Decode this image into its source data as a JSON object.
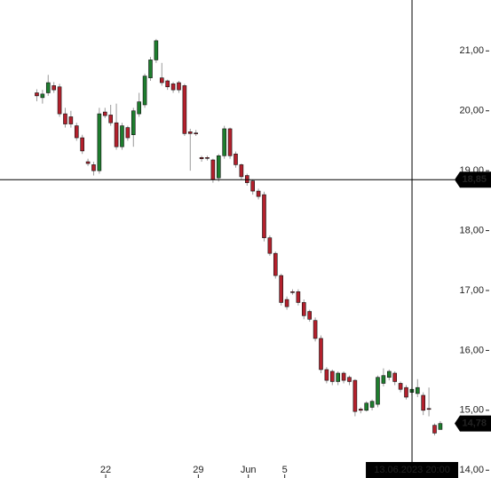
{
  "chart_data": {
    "type": "candlestick",
    "open": [
      20.3,
      20.22,
      20.3,
      20.42,
      20.4,
      19.95,
      19.9,
      19.75,
      19.55,
      19.15,
      19.1,
      19.0,
      19.98,
      19.93,
      19.8,
      19.4,
      19.72,
      19.6,
      19.95,
      20.1,
      20.55,
      20.85,
      20.55,
      20.5,
      20.45,
      20.47,
      20.42,
      19.65,
      19.63,
      19.22,
      19.22,
      19.18,
      18.88,
      19.25,
      19.7,
      19.28,
      19.1,
      18.92,
      18.83,
      18.66,
      18.6,
      17.88,
      17.62,
      17.25,
      16.85,
      16.98,
      16.98,
      16.8,
      16.65,
      16.5,
      16.2,
      15.68,
      15.65,
      15.48,
      15.62,
      15.55,
      15.5,
      15.02,
      15.0,
      15.05,
      15.1,
      15.45,
      15.55,
      15.62,
      15.45,
      15.38,
      15.3,
      15.28,
      15.25,
      15.03,
      14.75,
      14.68
    ],
    "high": [
      20.36,
      20.35,
      20.6,
      20.48,
      20.45,
      20.05,
      20.0,
      19.8,
      19.6,
      19.2,
      19.15,
      20.05,
      20.05,
      20.1,
      20.12,
      19.8,
      19.75,
      20.05,
      20.3,
      20.62,
      20.9,
      21.2,
      20.8,
      20.52,
      20.48,
      20.5,
      20.45,
      19.7,
      19.68,
      19.25,
      19.25,
      19.2,
      19.28,
      19.75,
      19.72,
      19.32,
      19.12,
      18.95,
      18.85,
      18.7,
      18.65,
      17.92,
      17.65,
      17.28,
      16.9,
      17.02,
      17.02,
      16.85,
      16.68,
      16.55,
      16.25,
      15.72,
      15.68,
      15.65,
      15.65,
      15.58,
      15.52,
      15.05,
      15.15,
      15.18,
      15.58,
      15.7,
      15.68,
      15.65,
      15.48,
      15.42,
      15.38,
      15.52,
      15.3,
      15.38,
      14.78,
      14.82
    ],
    "low": [
      20.16,
      20.12,
      20.25,
      20.3,
      19.9,
      19.72,
      19.72,
      19.5,
      19.28,
      19.08,
      18.92,
      18.95,
      19.88,
      19.75,
      19.35,
      19.35,
      19.5,
      19.4,
      19.9,
      20.05,
      20.5,
      20.8,
      20.42,
      20.35,
      20.3,
      20.3,
      19.58,
      19.0,
      19.58,
      19.15,
      19.17,
      18.8,
      18.82,
      19.2,
      19.2,
      19.05,
      18.85,
      18.75,
      18.6,
      18.52,
      17.82,
      17.58,
      17.2,
      16.75,
      16.68,
      16.93,
      16.75,
      16.52,
      16.48,
      16.15,
      15.62,
      15.45,
      15.42,
      15.42,
      15.45,
      15.42,
      14.9,
      14.95,
      14.98,
      15.0,
      15.05,
      15.4,
      15.5,
      15.42,
      15.3,
      15.18,
      15.25,
      15.22,
      14.92,
      14.9,
      14.58,
      14.7
    ],
    "close": [
      20.25,
      20.28,
      20.47,
      20.35,
      19.95,
      19.78,
      19.78,
      19.55,
      19.33,
      19.12,
      19.0,
      19.95,
      19.92,
      19.8,
      19.4,
      19.75,
      19.55,
      20.0,
      20.15,
      20.58,
      20.85,
      21.17,
      20.47,
      20.4,
      20.35,
      20.35,
      19.62,
      19.62,
      19.62,
      19.2,
      19.21,
      18.85,
      19.25,
      19.7,
      19.25,
      19.1,
      18.9,
      18.8,
      18.66,
      18.57,
      17.88,
      17.62,
      17.25,
      16.8,
      16.73,
      16.97,
      16.8,
      16.58,
      16.52,
      16.2,
      15.68,
      15.5,
      15.48,
      15.62,
      15.5,
      15.48,
      14.98,
      15.0,
      15.12,
      15.15,
      15.55,
      15.58,
      15.65,
      15.48,
      15.35,
      15.22,
      15.35,
      15.38,
      15.0,
      15.02,
      14.62,
      14.78
    ],
    "up_color": "#1e7d2e",
    "down_color": "#b3202c",
    "xlim": [
      -6.4,
      80
    ],
    "xticks": [
      {
        "value": 12.2,
        "label": "22"
      },
      {
        "value": 28.5,
        "label": "29"
      },
      {
        "value": 37.3,
        "label": "Jun"
      },
      {
        "value": 43.7,
        "label": "5"
      }
    ],
    "ylim": [
      13.87,
      21.85
    ],
    "yticks": [
      {
        "value": 14,
        "label": "14,00"
      },
      {
        "value": 15,
        "label": "15,00"
      },
      {
        "value": 16,
        "label": "16,00"
      },
      {
        "value": 17,
        "label": "17,00"
      },
      {
        "value": 18,
        "label": "18,00"
      },
      {
        "value": 19,
        "label": "19,00"
      },
      {
        "value": 20,
        "label": "20,00"
      },
      {
        "value": 21,
        "label": "21,00"
      }
    ],
    "crosshair": {
      "x": 66.1,
      "x_label": "13.06.2023 20:00",
      "y": {
        "value": 18.85,
        "label": "18,85"
      }
    },
    "last_price": {
      "value": 14.78,
      "label": "14,78"
    }
  }
}
